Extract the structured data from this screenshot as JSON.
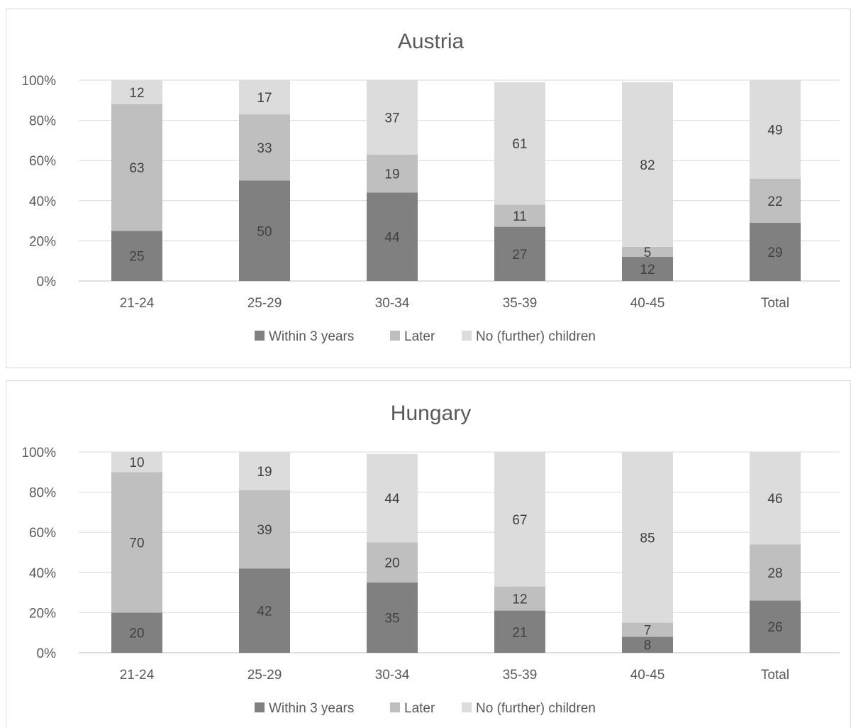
{
  "legend": {
    "items": [
      {
        "label": "Within 3 years",
        "color": "#808080"
      },
      {
        "label": "Later",
        "color": "#bfbfbf"
      },
      {
        "label": "No (further) children",
        "color": "#dcdcdc"
      }
    ]
  },
  "chart_data": [
    {
      "type": "bar",
      "stacked": true,
      "title": "Austria",
      "categories": [
        "21-24",
        "25-29",
        "30-34",
        "35-39",
        "40-45",
        "Total"
      ],
      "series": [
        {
          "name": "Within 3 years",
          "values": [
            25,
            50,
            44,
            27,
            12,
            29
          ],
          "color": "#808080"
        },
        {
          "name": "Later",
          "values": [
            63,
            33,
            19,
            11,
            5,
            22
          ],
          "color": "#bfbfbf"
        },
        {
          "name": "No (further) children",
          "values": [
            12,
            17,
            37,
            61,
            82,
            49
          ],
          "color": "#dcdcdc"
        }
      ],
      "ylim": [
        0,
        100
      ],
      "yticks": [
        "0%",
        "20%",
        "40%",
        "60%",
        "80%",
        "100%"
      ],
      "grid": true,
      "legend_position": "bottom"
    },
    {
      "type": "bar",
      "stacked": true,
      "title": "Hungary",
      "categories": [
        "21-24",
        "25-29",
        "30-34",
        "35-39",
        "40-45",
        "Total"
      ],
      "series": [
        {
          "name": "Within 3 years",
          "values": [
            20,
            42,
            35,
            21,
            8,
            26
          ],
          "color": "#808080"
        },
        {
          "name": "Later",
          "values": [
            70,
            39,
            20,
            12,
            7,
            28
          ],
          "color": "#bfbfbf"
        },
        {
          "name": "No (further) children",
          "values": [
            10,
            19,
            44,
            67,
            85,
            46
          ],
          "color": "#dcdcdc"
        }
      ],
      "ylim": [
        0,
        100
      ],
      "yticks": [
        "0%",
        "20%",
        "40%",
        "60%",
        "80%",
        "100%"
      ],
      "grid": true,
      "legend_position": "bottom"
    }
  ]
}
